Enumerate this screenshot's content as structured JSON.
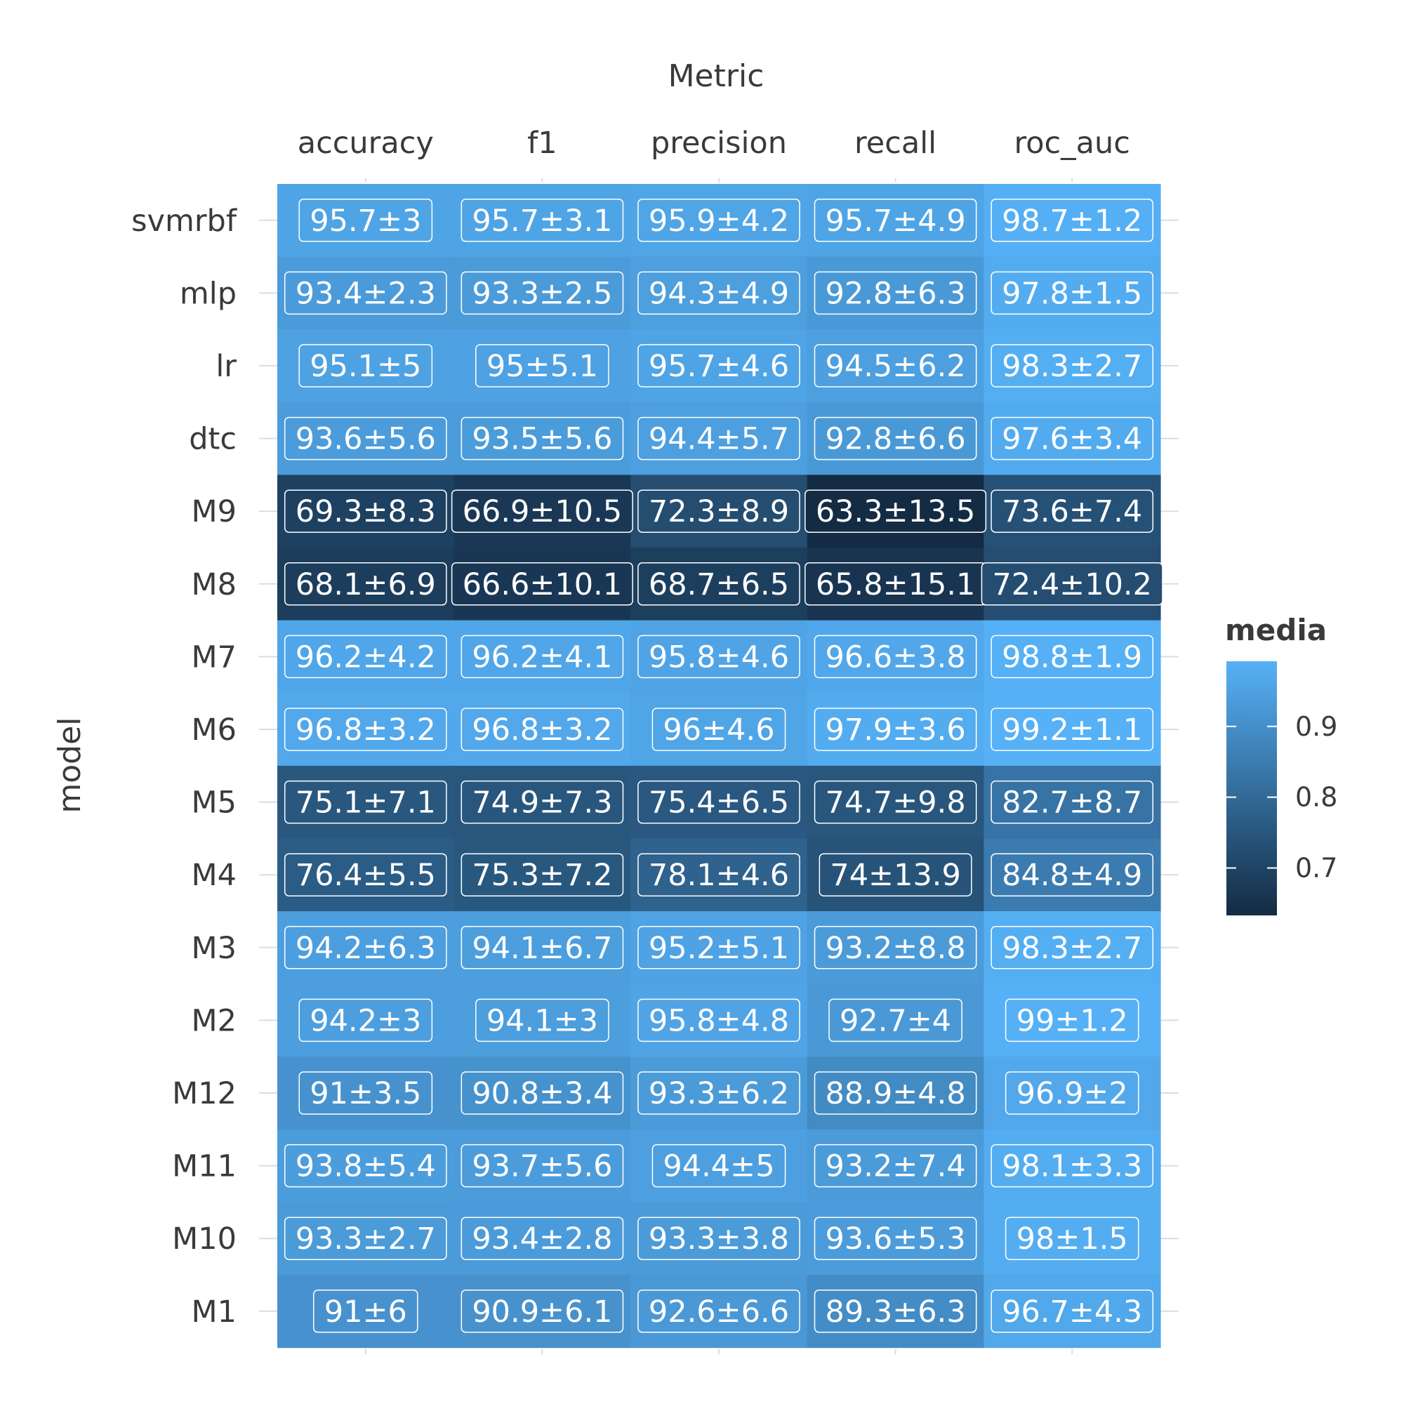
{
  "chart_data": {
    "type": "heatmap",
    "xlabel": "Metric",
    "ylabel": "model",
    "x_categories": [
      "accuracy",
      "f1",
      "precision",
      "recall",
      "roc_auc"
    ],
    "y_categories": [
      "svmrbf",
      "mlp",
      "lr",
      "dtc",
      "M9",
      "M8",
      "M7",
      "M6",
      "M5",
      "M4",
      "M3",
      "M2",
      "M12",
      "M11",
      "M10",
      "M1"
    ],
    "values": [
      [
        0.957,
        0.957,
        0.959,
        0.957,
        0.987
      ],
      [
        0.934,
        0.933,
        0.943,
        0.928,
        0.978
      ],
      [
        0.951,
        0.95,
        0.957,
        0.945,
        0.983
      ],
      [
        0.936,
        0.935,
        0.944,
        0.928,
        0.976
      ],
      [
        0.693,
        0.669,
        0.723,
        0.633,
        0.736
      ],
      [
        0.681,
        0.666,
        0.687,
        0.658,
        0.724
      ],
      [
        0.962,
        0.962,
        0.958,
        0.966,
        0.988
      ],
      [
        0.968,
        0.968,
        0.96,
        0.979,
        0.992
      ],
      [
        0.751,
        0.749,
        0.754,
        0.747,
        0.827
      ],
      [
        0.764,
        0.753,
        0.781,
        0.74,
        0.848
      ],
      [
        0.942,
        0.941,
        0.952,
        0.932,
        0.983
      ],
      [
        0.942,
        0.941,
        0.958,
        0.927,
        0.99
      ],
      [
        0.91,
        0.908,
        0.933,
        0.889,
        0.969
      ],
      [
        0.938,
        0.937,
        0.944,
        0.932,
        0.981
      ],
      [
        0.933,
        0.934,
        0.933,
        0.936,
        0.98
      ],
      [
        0.91,
        0.909,
        0.926,
        0.893,
        0.967
      ]
    ],
    "labels": [
      [
        "95.7±3",
        "95.7±3.1",
        "95.9±4.2",
        "95.7±4.9",
        "98.7±1.2"
      ],
      [
        "93.4±2.3",
        "93.3±2.5",
        "94.3±4.9",
        "92.8±6.3",
        "97.8±1.5"
      ],
      [
        "95.1±5",
        "95±5.1",
        "95.7±4.6",
        "94.5±6.2",
        "98.3±2.7"
      ],
      [
        "93.6±5.6",
        "93.5±5.6",
        "94.4±5.7",
        "92.8±6.6",
        "97.6±3.4"
      ],
      [
        "69.3±8.3",
        "66.9±10.5",
        "72.3±8.9",
        "63.3±13.5",
        "73.6±7.4"
      ],
      [
        "68.1±6.9",
        "66.6±10.1",
        "68.7±6.5",
        "65.8±15.1",
        "72.4±10.2"
      ],
      [
        "96.2±4.2",
        "96.2±4.1",
        "95.8±4.6",
        "96.6±3.8",
        "98.8±1.9"
      ],
      [
        "96.8±3.2",
        "96.8±3.2",
        "96±4.6",
        "97.9±3.6",
        "99.2±1.1"
      ],
      [
        "75.1±7.1",
        "74.9±7.3",
        "75.4±6.5",
        "74.7±9.8",
        "82.7±8.7"
      ],
      [
        "76.4±5.5",
        "75.3±7.2",
        "78.1±4.6",
        "74±13.9",
        "84.8±4.9"
      ],
      [
        "94.2±6.3",
        "94.1±6.7",
        "95.2±5.1",
        "93.2±8.8",
        "98.3±2.7"
      ],
      [
        "94.2±3",
        "94.1±3",
        "95.8±4.8",
        "92.7±4",
        "99±1.2"
      ],
      [
        "91±3.5",
        "90.8±3.4",
        "93.3±6.2",
        "88.9±4.8",
        "96.9±2"
      ],
      [
        "93.8±5.4",
        "93.7±5.6",
        "94.4±5",
        "93.2±7.4",
        "98.1±3.3"
      ],
      [
        "93.3±2.7",
        "93.4±2.8",
        "93.3±3.8",
        "93.6±5.3",
        "98±1.5"
      ],
      [
        "91±6",
        "90.9±6.1",
        "92.6±6.6",
        "89.3±6.3",
        "96.7±4.3"
      ]
    ],
    "legend": {
      "title": "media",
      "placement": "right",
      "ticks": [
        0.9,
        0.8,
        0.7
      ],
      "tick_labels": [
        "0.9",
        "0.8",
        "0.7"
      ],
      "range": [
        0.633,
        0.992
      ]
    },
    "colors": {
      "low": "#132B43",
      "high": "#56B1F7",
      "label_text": "#ffffff",
      "axis_text": "#3a3a3a",
      "tick_mark": "#dddddd"
    }
  }
}
